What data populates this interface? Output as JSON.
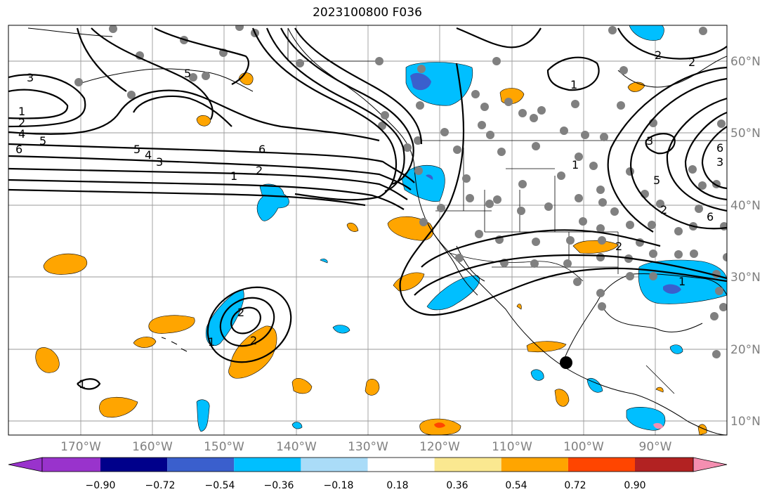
{
  "title": "2023100800 F036",
  "map": {
    "lon_labels": [
      "170°W",
      "160°W",
      "150°W",
      "140°W",
      "130°W",
      "120°W",
      "110°W",
      "100°W",
      "90°W"
    ],
    "lat_labels": [
      "60°N",
      "50°N",
      "40°N",
      "30°N",
      "20°N",
      "10°N"
    ],
    "contour_labels": [
      "3",
      "1",
      "2",
      "4",
      "5",
      "6",
      "5",
      "4",
      "3",
      "5",
      "6",
      "1",
      "2",
      "2",
      "2",
      "1",
      "1",
      "1",
      "2",
      "1",
      "2",
      "3",
      "5",
      "6",
      "2",
      "6",
      "3",
      "2",
      "1"
    ],
    "gridlines": true
  },
  "colorbar": {
    "tick_labels": [
      "−0.90",
      "−0.72",
      "−0.54",
      "−0.36",
      "−0.18",
      "0.18",
      "0.36",
      "0.54",
      "0.72",
      "0.90"
    ],
    "colors": [
      "#9933cc",
      "#00008b",
      "#3a5fcd",
      "#00bfff",
      "#aadcf8",
      "#ffffff",
      "#fae890",
      "#ffa500",
      "#ff4500",
      "#b22222",
      "#f48fb1"
    ]
  }
}
